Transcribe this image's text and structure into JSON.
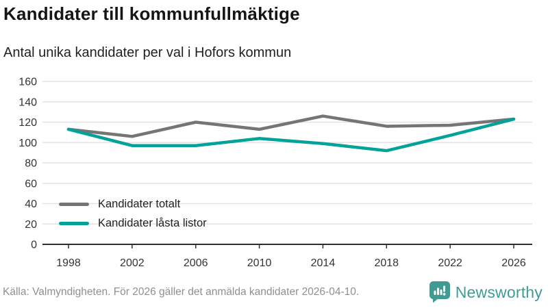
{
  "chart_data": {
    "type": "line",
    "title": "Kandidater till kommunfullmäktige",
    "subtitle": "Antal unika kandidater per val i Hofors kommun",
    "x": [
      1998,
      2002,
      2006,
      2010,
      2014,
      2018,
      2022,
      2026
    ],
    "series": [
      {
        "name": "Kandidater totalt",
        "color": "#757575",
        "values": [
          113,
          106,
          120,
          113,
          126,
          116,
          117,
          123
        ]
      },
      {
        "name": "Kandidater låsta listor",
        "color": "#00a29a",
        "values": [
          113,
          97,
          97,
          104,
          99,
          92,
          107,
          123
        ]
      }
    ],
    "xlabel": "",
    "ylabel": "",
    "ylim": [
      0,
      160
    ],
    "ytick_step": 20,
    "yticks": [
      0,
      20,
      40,
      60,
      80,
      100,
      120,
      140,
      160
    ],
    "grid": "horizontal",
    "legend_position": "inside-bottom-left"
  },
  "footer": {
    "source": "Källa: Valmyndigheten. För 2026 gäller det anmälda kandidater 2026-04-10.",
    "brand": "Newsworthy"
  },
  "icons": {
    "logo": "bar-chart-speech-bubble-icon"
  },
  "colors": {
    "accent_teal": "#00a29a",
    "series_gray": "#757575",
    "brand_teal": "#3f9b94",
    "gridline": "#e2e2e2",
    "axis": "#2e2e2e",
    "tick_text": "#333333",
    "muted_text": "#8f8f8f"
  }
}
